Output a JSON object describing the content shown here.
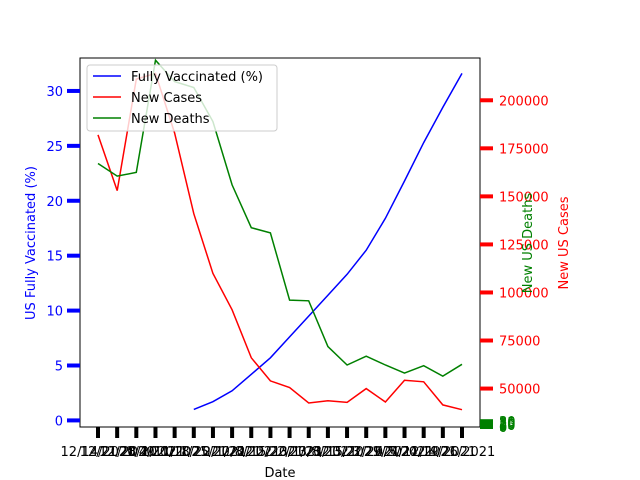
{
  "chart_data": {
    "type": "line",
    "title": "",
    "xlabel": "Date",
    "ylabel_left": "US Fully Vaccinated (%)",
    "ylabel_right_cases": "New US Cases",
    "ylabel_right_deaths": "New US Deaths",
    "x_count": 20,
    "x_tick_labels": [
      "12/14/2020",
      "12/21/2020",
      "12/28/2020",
      "1/4/2021",
      "1/11/2021",
      "1/18/2021",
      "1/25/2021",
      "2/1/2021",
      "2/8/2021",
      "2/15/2021",
      "2/22/2021",
      "3/1/2021",
      "3/8/2021",
      "3/15/2021",
      "3/22/2021",
      "3/29/2021",
      "4/5/2021",
      "4/12/2021",
      "4/19/2021",
      "4/26/2021"
    ],
    "axes": {
      "left": {
        "ylim": [
          -0.6,
          33
        ],
        "ticks": [
          0,
          5,
          10,
          15,
          20,
          25,
          30
        ],
        "color": "#0000ff"
      },
      "right_cases": {
        "ylim": [
          30000,
          222000
        ],
        "ticks": [
          50000,
          75000,
          100000,
          125000,
          150000,
          175000,
          200000
        ],
        "color": "#ff0000"
      },
      "right_deaths": {
        "ylim": [
          0,
          5000
        ],
        "ticks": [
          0,
          5,
          10,
          15,
          20,
          25,
          30
        ],
        "color": "#008000"
      }
    },
    "series": [
      {
        "name": "Fully Vaccinated (%)",
        "axis": "left",
        "color": "#0000ff",
        "values": [
          null,
          null,
          null,
          null,
          null,
          1.0,
          1.7,
          2.7,
          4.2,
          5.7,
          7.6,
          9.5,
          11.4,
          13.3,
          15.5,
          18.4,
          21.8,
          25.3,
          28.5,
          31.6
        ]
      },
      {
        "name": "New Cases",
        "axis": "right_cases",
        "color": "#ff0000",
        "values": [
          182000,
          153000,
          211000,
          214000,
          183000,
          141000,
          110000,
          91000,
          66000,
          54000,
          50500,
          42500,
          43700,
          42800,
          50000,
          43000,
          54300,
          53500,
          41500,
          39000
        ]
      },
      {
        "name": "New Deaths",
        "axis": "right_deaths",
        "color": "#008000",
        "values": [
          3570,
          3400,
          3450,
          4970,
          4680,
          4600,
          4140,
          3280,
          2700,
          2630,
          1720,
          1710,
          1090,
          840,
          960,
          840,
          730,
          830,
          690,
          850
        ]
      }
    ],
    "legend": {
      "placement": "top-left",
      "entries": [
        "Fully Vaccinated (%)",
        "New Cases",
        "New Deaths"
      ]
    }
  }
}
